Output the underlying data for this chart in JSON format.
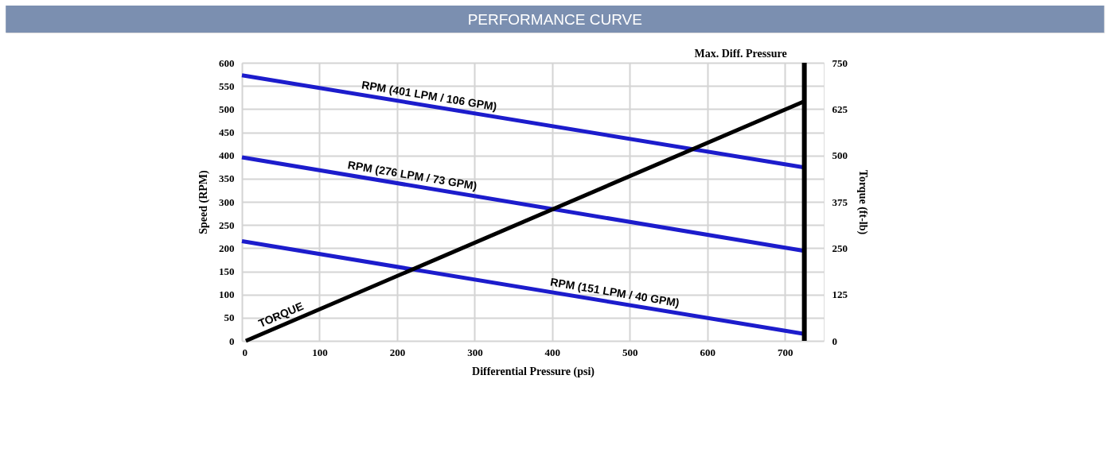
{
  "chart_data": {
    "type": "line",
    "title": "PERFORMANCE CURVE",
    "xlabel": "Differential Pressure (psi)",
    "ylabel": "Speed (RPM)",
    "y2label": "Torque (ft-lb)",
    "xlim": [
      0,
      750
    ],
    "xticks": [
      0,
      100,
      200,
      300,
      400,
      500,
      600,
      700
    ],
    "ylim": [
      0,
      600
    ],
    "yticks": [
      0,
      50,
      100,
      150,
      200,
      250,
      300,
      350,
      400,
      450,
      500,
      550,
      600
    ],
    "y2lim": [
      0,
      750
    ],
    "y2ticks": [
      0,
      125,
      250,
      375,
      500,
      625,
      750
    ],
    "series": [
      {
        "name": "RPM (401 LPM / 106 GPM)",
        "color": "#1c1ccc",
        "x": [
          0,
          725
        ],
        "values": [
          573,
          374
        ]
      },
      {
        "name": "RPM (276 LPM / 73 GPM)",
        "color": "#1c1ccc",
        "x": [
          0,
          725
        ],
        "values": [
          396,
          194
        ]
      },
      {
        "name": "RPM (151 LPM / 40 GPM)",
        "color": "#1c1ccc",
        "x": [
          0,
          725
        ],
        "values": [
          215,
          15
        ]
      },
      {
        "name": "TORQUE",
        "color": "#000000",
        "axis": "y2",
        "x": [
          5,
          725
        ],
        "values": [
          0,
          646
        ]
      }
    ],
    "ref_lines": [
      {
        "axis": "x",
        "value": 725,
        "label": "Max. Diff. Pressure",
        "color": "#000000"
      }
    ],
    "grid": true,
    "legend": false,
    "marker": "none",
    "line_style": "solid"
  }
}
